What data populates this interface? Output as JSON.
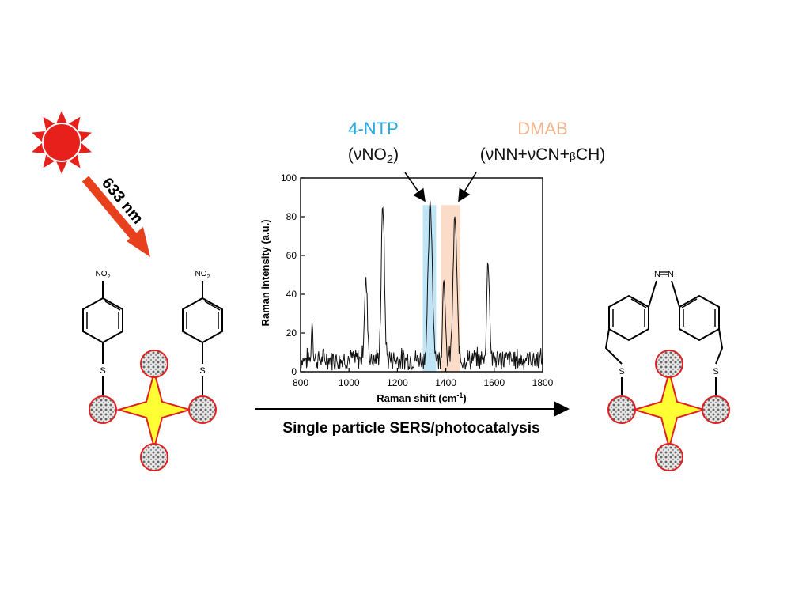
{
  "laser": {
    "wavelength_label": "633 nm",
    "laser_color": "#e8401c",
    "sun_color": "#e8201c"
  },
  "reactant": {
    "group_label": "NO",
    "group_subscript": "2",
    "linker_label": "S"
  },
  "product": {
    "azo_label_left": "N",
    "azo_label_right": "N",
    "linker_label": "S"
  },
  "process": {
    "label": "Single particle SERS/photocatalysis"
  },
  "annotations": {
    "ntp": {
      "name": "4-NTP",
      "mode_prefix": "(νNO",
      "mode_sub": "2",
      "mode_suffix": ")",
      "color": "#29abe2",
      "band_color": "#bfe4f6"
    },
    "dmab": {
      "name": "DMAB",
      "mode_prefix": "(νNN+νCN+",
      "mode_small": "β",
      "mode_suffix": "CH)",
      "color": "#f0b48e",
      "band_color": "#fbdcc8"
    }
  },
  "particle": {
    "star_fill": "#ffff33",
    "star_stroke": "#e02020",
    "sphere_stroke": "#e02020"
  },
  "chart_data": {
    "type": "line",
    "xlabel": "Raman shift (cm",
    "xlabel_sup": "-1",
    "xlabel_end": ")",
    "ylabel": "Raman intensity (a.u.)",
    "xlim": [
      800,
      1800
    ],
    "ylim": [
      0,
      100
    ],
    "xticks": [
      800,
      1000,
      1200,
      1400,
      1600,
      1800
    ],
    "yticks": [
      0,
      20,
      40,
      60,
      80,
      100
    ],
    "highlight_bands": [
      {
        "label": "4-NTP",
        "x": [
          1305,
          1360
        ]
      },
      {
        "label": "DMAB",
        "x": [
          1380,
          1460
        ]
      }
    ],
    "peaks": [
      {
        "x": 848,
        "y": 22,
        "w": 4
      },
      {
        "x": 1070,
        "y": 40,
        "w": 9
      },
      {
        "x": 1140,
        "y": 80,
        "w": 9
      },
      {
        "x": 1336,
        "y": 79,
        "w": 12
      },
      {
        "x": 1392,
        "y": 45,
        "w": 7
      },
      {
        "x": 1438,
        "y": 72,
        "w": 11
      },
      {
        "x": 1575,
        "y": 52,
        "w": 8
      }
    ],
    "baseline": 5,
    "noise": 5,
    "line_color": "#111111"
  }
}
